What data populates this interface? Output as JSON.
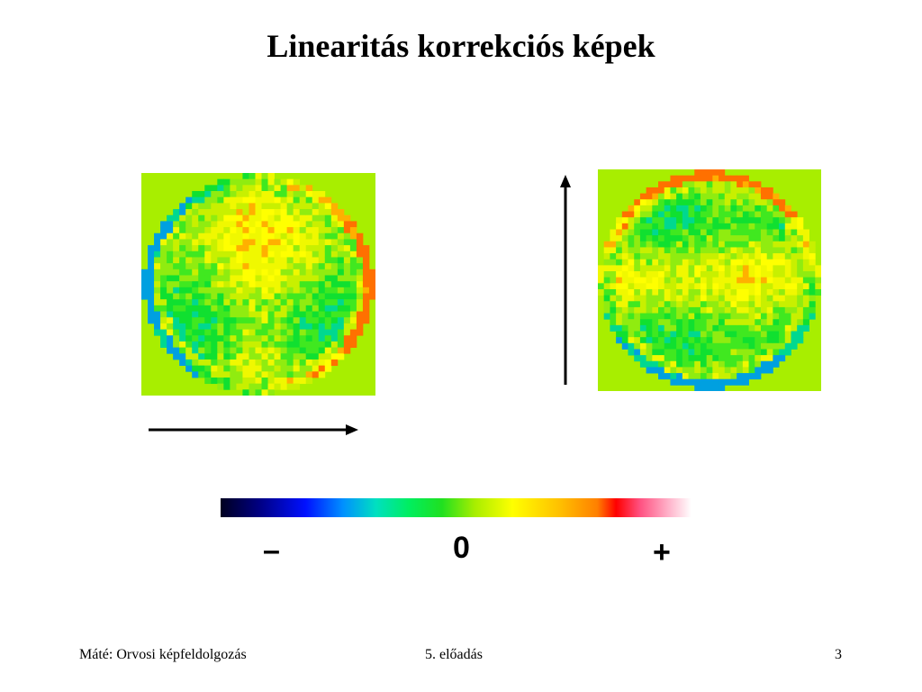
{
  "slide": {
    "title": "Linearitás korrekciós képek",
    "colorbar": {
      "labels": {
        "minus": "–",
        "zero": "0",
        "plus": "+"
      },
      "colors": [
        "#000020",
        "#000080",
        "#0010ff",
        "#0090ff",
        "#00e0c0",
        "#00ee60",
        "#20e020",
        "#a8ee00",
        "#ffff00",
        "#ffc000",
        "#ff8000",
        "#ff0000",
        "#ff5080",
        "#ffb0c8",
        "#ffffff"
      ]
    },
    "images": [
      {
        "name": "x-direction linearity correction image",
        "arrow": "right"
      },
      {
        "name": "y-direction linearity correction image",
        "arrow": "up"
      }
    ],
    "colors": {
      "background_field": "#a8ee00",
      "arrow": "#000000"
    },
    "footer": {
      "left": "Máté: Orvosi képfeldolgozás",
      "center": "5. előadás",
      "right": "3"
    }
  }
}
